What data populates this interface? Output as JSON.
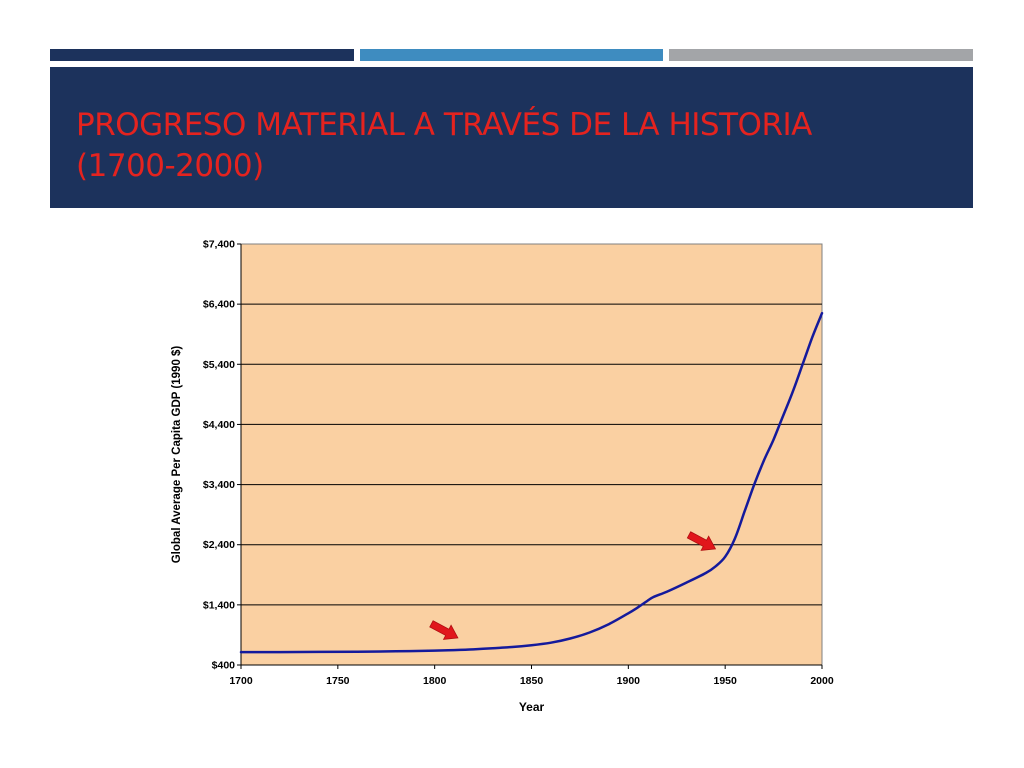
{
  "slide": {
    "title_line1": "PROGRESO MATERIAL A TRAVÉS DE LA HISTORIA",
    "title_line2": "(1700-2000)"
  },
  "colors": {
    "title_band": "#1c325c",
    "title_text": "#e4231f",
    "accent_bars": [
      "#1c325c",
      "#3e8cc0",
      "#a3a5a8"
    ],
    "plot_bg": "#fad0a2",
    "line": "#141a9c",
    "arrow": "#e1161b",
    "grid": "#000000"
  },
  "chart_data": {
    "type": "line",
    "xlabel": "Year",
    "ylabel": "Global Average Per Capita GDP (1990 $)",
    "xlim": [
      1700,
      2000
    ],
    "ylim": [
      400,
      7400
    ],
    "xticks": [
      1700,
      1750,
      1800,
      1850,
      1900,
      1950,
      2000
    ],
    "xtick_labels": [
      "1700",
      "1750",
      "1800",
      "1850",
      "1900",
      "1950",
      "2000"
    ],
    "yticks": [
      400,
      1400,
      2400,
      3400,
      4400,
      5400,
      6400,
      7400
    ],
    "ytick_labels": [
      "$400",
      "$1,400",
      "$2,400",
      "$3,400",
      "$4,400",
      "$5,400",
      "$6,400",
      "$7,400"
    ],
    "grid": "horizontal",
    "series": [
      {
        "x": [
          1700,
          1720,
          1740,
          1760,
          1780,
          1800,
          1810,
          1820,
          1830,
          1840,
          1850,
          1860,
          1870,
          1880,
          1890,
          1900,
          1905,
          1910,
          1913,
          1920,
          1930,
          1940,
          1945,
          1950,
          1955,
          1960,
          1965,
          1970,
          1975,
          1980,
          1985,
          1990,
          1995,
          2000
        ],
        "y": [
          615,
          615,
          617,
          620,
          628,
          640,
          648,
          660,
          680,
          700,
          730,
          770,
          840,
          940,
          1080,
          1260,
          1360,
          1470,
          1530,
          1620,
          1770,
          1930,
          2040,
          2200,
          2500,
          2950,
          3400,
          3800,
          4150,
          4550,
          4950,
          5400,
          5850,
          6250
        ]
      }
    ],
    "annotations": [
      {
        "type": "arrow",
        "x": 1812,
        "y": 850
      },
      {
        "type": "arrow",
        "x": 1945,
        "y": 2330
      }
    ]
  }
}
